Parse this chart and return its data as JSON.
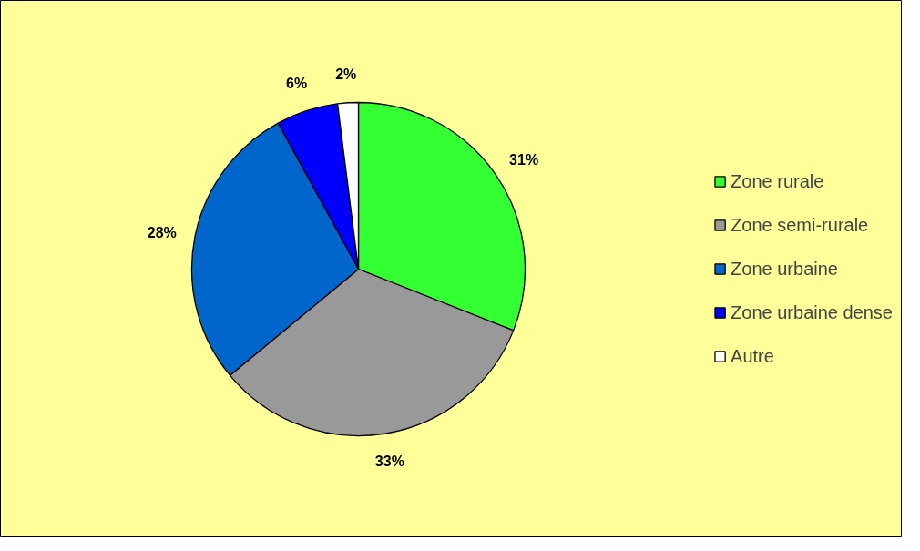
{
  "chart_data": {
    "type": "pie",
    "categories": [
      "Zone rurale",
      "Zone semi-rurale",
      "Zone urbaine",
      "Zone urbaine dense",
      "Autre"
    ],
    "values": [
      31,
      33,
      28,
      6,
      2
    ],
    "value_labels": [
      "31%",
      "33%",
      "28%",
      "6%",
      "2%"
    ],
    "colors": [
      "#33ff33",
      "#999999",
      "#0066cc",
      "#0000ff",
      "#ffffff"
    ],
    "legend": "right"
  }
}
